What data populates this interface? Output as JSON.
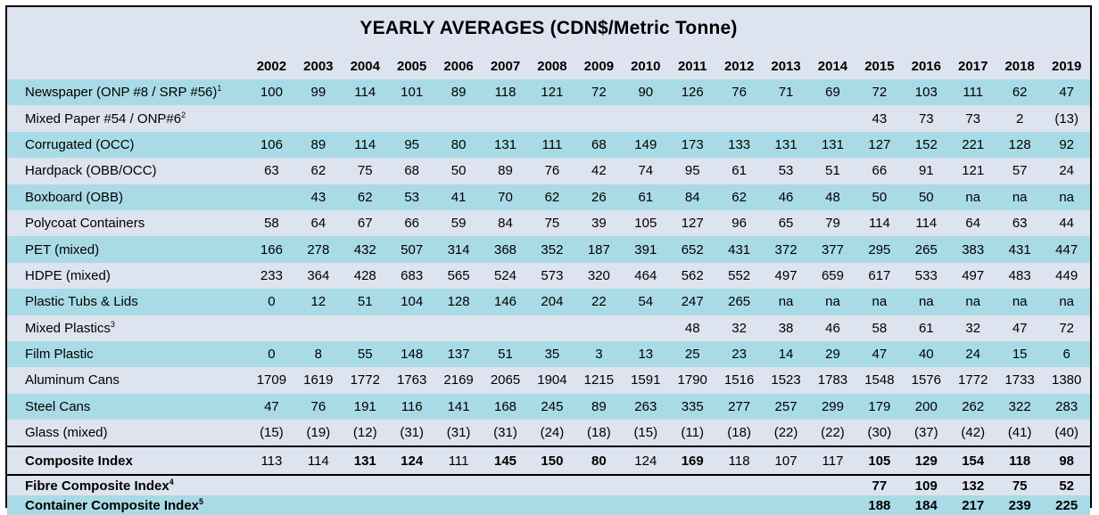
{
  "title": "YEARLY AVERAGES (CDN$/Metric Tonne)",
  "years": [
    "2002",
    "2003",
    "2004",
    "2005",
    "2006",
    "2007",
    "2008",
    "2009",
    "2010",
    "2011",
    "2012",
    "2013",
    "2014",
    "2015",
    "2016",
    "2017",
    "2018",
    "2019"
  ],
  "rows": [
    {
      "label": "Newspaper (ONP #8 / SRP #56)",
      "sup": "1",
      "values": [
        "100",
        "99",
        "114",
        "101",
        "89",
        "118",
        "121",
        "72",
        "90",
        "126",
        "76",
        "71",
        "69",
        "72",
        "103",
        "111",
        "62",
        "47"
      ]
    },
    {
      "label": "Mixed Paper #54 / ONP#6",
      "sup": "2",
      "values": [
        "",
        "",
        "",
        "",
        "",
        "",
        "",
        "",
        "",
        "",
        "",
        "",
        "",
        "43",
        "73",
        "73",
        "2",
        "(13)"
      ]
    },
    {
      "label": "Corrugated (OCC)",
      "sup": "",
      "values": [
        "106",
        "89",
        "114",
        "95",
        "80",
        "131",
        "111",
        "68",
        "149",
        "173",
        "133",
        "131",
        "131",
        "127",
        "152",
        "221",
        "128",
        "92"
      ]
    },
    {
      "label": "Hardpack (OBB/OCC)",
      "sup": "",
      "values": [
        "63",
        "62",
        "75",
        "68",
        "50",
        "89",
        "76",
        "42",
        "74",
        "95",
        "61",
        "53",
        "51",
        "66",
        "91",
        "121",
        "57",
        "24"
      ]
    },
    {
      "label": "Boxboard (OBB)",
      "sup": "",
      "values": [
        "",
        "43",
        "62",
        "53",
        "41",
        "70",
        "62",
        "26",
        "61",
        "84",
        "62",
        "46",
        "48",
        "50",
        "50",
        "na",
        "na",
        "na"
      ]
    },
    {
      "label": "Polycoat Containers",
      "sup": "",
      "values": [
        "58",
        "64",
        "67",
        "66",
        "59",
        "84",
        "75",
        "39",
        "105",
        "127",
        "96",
        "65",
        "79",
        "114",
        "114",
        "64",
        "63",
        "44"
      ]
    },
    {
      "label": "PET (mixed)",
      "sup": "",
      "values": [
        "166",
        "278",
        "432",
        "507",
        "314",
        "368",
        "352",
        "187",
        "391",
        "652",
        "431",
        "372",
        "377",
        "295",
        "265",
        "383",
        "431",
        "447"
      ]
    },
    {
      "label": "HDPE (mixed)",
      "sup": "",
      "values": [
        "233",
        "364",
        "428",
        "683",
        "565",
        "524",
        "573",
        "320",
        "464",
        "562",
        "552",
        "497",
        "659",
        "617",
        "533",
        "497",
        "483",
        "449"
      ]
    },
    {
      "label": "Plastic Tubs & Lids",
      "sup": "",
      "values": [
        "0",
        "12",
        "51",
        "104",
        "128",
        "146",
        "204",
        "22",
        "54",
        "247",
        "265",
        "na",
        "na",
        "na",
        "na",
        "na",
        "na",
        "na"
      ]
    },
    {
      "label": "Mixed Plastics",
      "sup": "3",
      "values": [
        "",
        "",
        "",
        "",
        "",
        "",
        "",
        "",
        "",
        "48",
        "32",
        "38",
        "46",
        "58",
        "61",
        "32",
        "47",
        "72"
      ]
    },
    {
      "label": "Film Plastic",
      "sup": "",
      "values": [
        "0",
        "8",
        "55",
        "148",
        "137",
        "51",
        "35",
        "3",
        "13",
        "25",
        "23",
        "14",
        "29",
        "47",
        "40",
        "24",
        "15",
        "6"
      ]
    },
    {
      "label": "Aluminum Cans",
      "sup": "",
      "values": [
        "1709",
        "1619",
        "1772",
        "1763",
        "2169",
        "2065",
        "1904",
        "1215",
        "1591",
        "1790",
        "1516",
        "1523",
        "1783",
        "1548",
        "1576",
        "1772",
        "1733",
        "1380"
      ]
    },
    {
      "label": "Steel Cans",
      "sup": "",
      "values": [
        "47",
        "76",
        "191",
        "116",
        "141",
        "168",
        "245",
        "89",
        "263",
        "335",
        "277",
        "257",
        "299",
        "179",
        "200",
        "262",
        "322",
        "283"
      ]
    },
    {
      "label": "Glass (mixed)",
      "sup": "",
      "values": [
        "(15)",
        "(19)",
        "(12)",
        "(31)",
        "(31)",
        "(31)",
        "(24)",
        "(18)",
        "(15)",
        "(11)",
        "(18)",
        "(22)",
        "(22)",
        "(30)",
        "(37)",
        "(42)",
        "(41)",
        "(40)"
      ]
    }
  ],
  "composite": {
    "label": "Composite Index",
    "values": [
      "113",
      "114",
      "131",
      "124",
      "111",
      "145",
      "150",
      "80",
      "124",
      "169",
      "118",
      "107",
      "117",
      "105",
      "129",
      "154",
      "118",
      "98"
    ]
  },
  "fibre": {
    "label": "Fibre Composite Index",
    "sup": "4",
    "values": [
      "",
      "",
      "",
      "",
      "",
      "",
      "",
      "",
      "",
      "",
      "",
      "",
      "",
      "77",
      "109",
      "132",
      "75",
      "52"
    ]
  },
  "container": {
    "label": "Container Composite Index",
    "sup": "5",
    "values": [
      "",
      "",
      "",
      "",
      "",
      "",
      "",
      "",
      "",
      "",
      "",
      "",
      "",
      "188",
      "184",
      "217",
      "239",
      "225"
    ]
  },
  "colors": {
    "band": "#a9dbe6",
    "background": "#dde3ef",
    "border": "#000000"
  }
}
